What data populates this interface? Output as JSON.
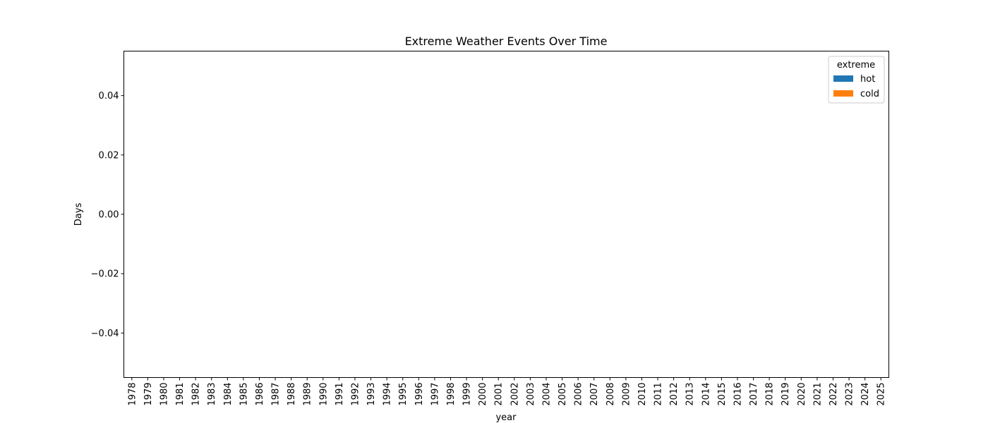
{
  "chart_data": {
    "type": "bar",
    "title": "Extreme Weather Events Over Time",
    "xlabel": "year",
    "ylabel": "Days",
    "categories": [
      "1978",
      "1979",
      "1980",
      "1981",
      "1982",
      "1983",
      "1984",
      "1985",
      "1986",
      "1987",
      "1988",
      "1989",
      "1990",
      "1991",
      "1992",
      "1993",
      "1994",
      "1995",
      "1996",
      "1997",
      "1998",
      "1999",
      "2000",
      "2001",
      "2002",
      "2003",
      "2004",
      "2005",
      "2006",
      "2007",
      "2008",
      "2009",
      "2010",
      "2011",
      "2012",
      "2013",
      "2014",
      "2015",
      "2016",
      "2017",
      "2018",
      "2019",
      "2020",
      "2021",
      "2022",
      "2023",
      "2024",
      "2025"
    ],
    "series": [
      {
        "name": "hot",
        "color": "#1f77b4",
        "values": [
          0,
          0,
          0,
          0,
          0,
          0,
          0,
          0,
          0,
          0,
          0,
          0,
          0,
          0,
          0,
          0,
          0,
          0,
          0,
          0,
          0,
          0,
          0,
          0,
          0,
          0,
          0,
          0,
          0,
          0,
          0,
          0,
          0,
          0,
          0,
          0,
          0,
          0,
          0,
          0,
          0,
          0,
          0,
          0,
          0,
          0,
          0,
          0
        ]
      },
      {
        "name": "cold",
        "color": "#ff7f0e",
        "values": [
          0,
          0,
          0,
          0,
          0,
          0,
          0,
          0,
          0,
          0,
          0,
          0,
          0,
          0,
          0,
          0,
          0,
          0,
          0,
          0,
          0,
          0,
          0,
          0,
          0,
          0,
          0,
          0,
          0,
          0,
          0,
          0,
          0,
          0,
          0,
          0,
          0,
          0,
          0,
          0,
          0,
          0,
          0,
          0,
          0,
          0,
          0,
          0
        ]
      }
    ],
    "yticks": [
      0.04,
      0.02,
      0.0,
      -0.02,
      -0.04
    ],
    "ytick_labels": [
      "0.04",
      "0.02",
      "0.00",
      "−0.02",
      "−0.04"
    ],
    "ylim": [
      -0.055,
      0.055
    ],
    "stacked": true,
    "grid": false,
    "legend": {
      "title": "extreme",
      "placement": "top-right"
    }
  }
}
